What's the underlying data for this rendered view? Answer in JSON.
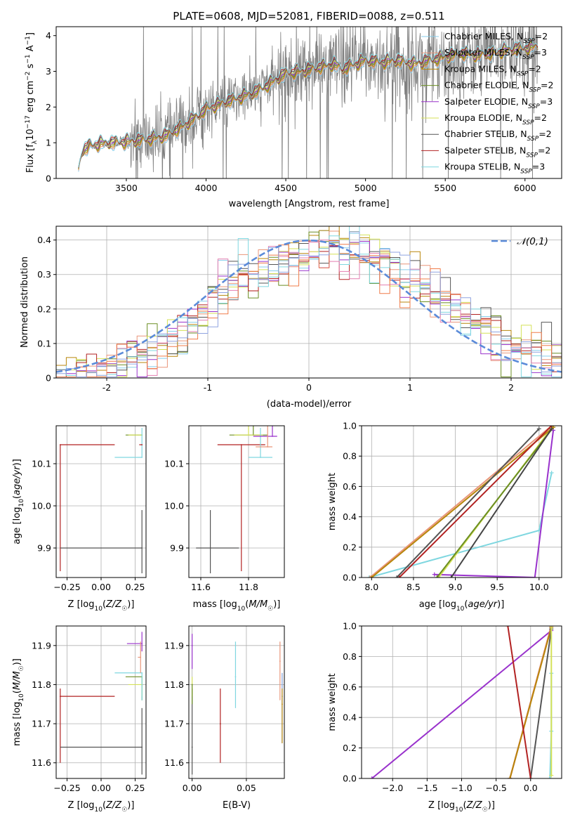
{
  "title": "PLATE=0608, MJD=52081, FIBERID=0088, z=0.511",
  "chart_data": [
    {
      "id": "spectrum",
      "type": "line",
      "xlabel": "wavelength [Angstrom, rest frame]",
      "ylabel": "Flux [f_λ10^-17 erg cm^-2 s^-1 A^-1]",
      "xlim": [
        3060,
        6230
      ],
      "ylim": [
        0,
        4.25
      ],
      "xticks": [
        3500,
        4000,
        4500,
        5000,
        5500,
        6000
      ],
      "yticks": [
        0,
        1,
        2,
        3,
        4
      ],
      "legend_position": "top-right",
      "legend": [
        {
          "label": "Chabrier MILES, N_SSP=2",
          "color": "#87ceeb"
        },
        {
          "label": "Salpeter MILES, N_SSP=3",
          "color": "#e9967a"
        },
        {
          "label": "Kroupa MILES, N_SSP=2",
          "color": "#b8860b"
        },
        {
          "label": "Chabrier ELODIE, N_SSP=2",
          "color": "#6b8e23"
        },
        {
          "label": "Salpeter ELODIE, N_SSP=3",
          "color": "#9932cc"
        },
        {
          "label": "Kroupa ELODIE, N_SSP=2",
          "color": "#d4e157"
        },
        {
          "label": "Chabrier STELIB, N_SSP=2",
          "color": "#555555"
        },
        {
          "label": "Salpeter STELIB, N_SSP=2",
          "color": "#b22222"
        },
        {
          "label": "Kroupa STELIB, N_SSP=3",
          "color": "#7fd7e0"
        }
      ],
      "observed_color": "#808080",
      "model_continuum": {
        "x": [
          3200,
          3220,
          3260,
          3300,
          3400,
          3480,
          3550,
          3650,
          3750,
          3850,
          3950,
          4000,
          4100,
          4200,
          4300,
          4400,
          4500,
          4600,
          4700,
          4800,
          4860,
          4900,
          5000,
          5100,
          5200,
          5300,
          5400,
          5500,
          5600,
          5700,
          5800,
          5900,
          6000,
          6080
        ],
        "y": [
          0.2,
          0.75,
          0.9,
          0.95,
          1.0,
          1.02,
          1.05,
          1.1,
          1.2,
          1.45,
          1.75,
          1.95,
          2.1,
          2.25,
          2.4,
          2.65,
          2.95,
          3.0,
          3.1,
          3.2,
          3.05,
          3.15,
          3.3,
          3.25,
          3.3,
          3.2,
          3.3,
          3.4,
          3.5,
          3.45,
          3.5,
          3.6,
          3.65,
          3.7
        ]
      }
    },
    {
      "id": "residuals",
      "type": "line",
      "xlabel": "(data-model)/error",
      "ylabel": "Normed distribution",
      "xlim": [
        -2.5,
        2.5
      ],
      "ylim": [
        0,
        0.44
      ],
      "xticks": [
        -2,
        -1,
        0,
        1,
        2
      ],
      "yticks": [
        0.0,
        0.1,
        0.2,
        0.3,
        0.4
      ],
      "legend": [
        {
          "label": "𝒩(0,1)",
          "color": "#5b8bd9",
          "style": "dashed"
        }
      ],
      "histogram_bin_width": 0.1,
      "histogram_profile": {
        "x": [
          -2.5,
          -2.0,
          -1.6,
          -1.2,
          -0.9,
          -0.5,
          -0.2,
          0.0,
          0.3,
          0.6,
          0.9,
          1.2,
          1.6,
          2.0,
          2.5
        ],
        "y": [
          0.01,
          0.03,
          0.06,
          0.14,
          0.25,
          0.31,
          0.33,
          0.37,
          0.38,
          0.36,
          0.3,
          0.26,
          0.17,
          0.09,
          0.03
        ]
      }
    },
    {
      "id": "age-vs-Z",
      "type": "scatter",
      "xlabel": "Z [log10(Z/Z☉)]",
      "ylabel": "age [log10(age/yr)]",
      "xlim": [
        -0.33,
        0.33
      ],
      "ylim": [
        9.83,
        10.19
      ],
      "xticks": [
        -0.25,
        0.0,
        0.25
      ],
      "xticklabels": [
        "−0.25",
        "0.00",
        "0.25"
      ],
      "yticks": [
        9.9,
        10.0,
        10.1
      ],
      "yticklabels": [
        "9.9",
        "10.0",
        "10.1"
      ],
      "points": [
        {
          "x": -0.3,
          "y": 10.145,
          "xerr": [
            0.0,
            0.4
          ],
          "yerr": [
            0.3,
            0.0
          ],
          "color": "#b22222"
        },
        {
          "x": 0.3,
          "y": 9.9,
          "xerr": [
            0.6,
            0.0
          ],
          "yerr": [
            0.06,
            0.09
          ],
          "color": "#555555"
        },
        {
          "x": 0.3,
          "y": 10.168,
          "xerr": [
            0.12,
            0.0
          ],
          "yerr": [
            0.0,
            0.0
          ],
          "color": "#6b8e23"
        },
        {
          "x": 0.3,
          "y": 10.168,
          "xerr": [
            0.1,
            0.0
          ],
          "yerr": [
            0.0,
            0.0
          ],
          "color": "#d4e157"
        },
        {
          "x": 0.3,
          "y": 10.115,
          "xerr": [
            0.2,
            0.0
          ],
          "yerr": [
            0.0,
            0.07
          ],
          "color": "#7fd7e0"
        },
        {
          "x": 0.3,
          "y": 10.145,
          "xerr": [
            0.02,
            0.0
          ],
          "yerr": [
            0.0,
            0.0
          ],
          "color": "#b22222"
        }
      ]
    },
    {
      "id": "age-vs-mass",
      "type": "scatter",
      "xlabel": "mass [log10(M/M☉)]",
      "xlim": [
        11.55,
        11.95
      ],
      "ylim": [
        9.83,
        10.19
      ],
      "xticks": [
        11.6,
        11.8
      ],
      "xticklabels": [
        "11.6",
        "11.8"
      ],
      "yticks": [
        9.9,
        10.0,
        10.1
      ],
      "yticklabels": [
        "9.9",
        "10.0",
        "10.1"
      ],
      "points": [
        {
          "x": 11.64,
          "y": 9.9,
          "xerr": [
            0.06,
            0.12
          ],
          "yerr": [
            0.06,
            0.09
          ],
          "color": "#555555"
        },
        {
          "x": 11.77,
          "y": 10.145,
          "xerr": [
            0.1,
            0.1
          ],
          "yerr": [
            0.3,
            0.0
          ],
          "color": "#b22222"
        },
        {
          "x": 11.82,
          "y": 10.168,
          "xerr": [
            0.1,
            0.06
          ],
          "yerr": [
            0.0,
            0.11
          ],
          "color": "#6b8e23"
        },
        {
          "x": 11.8,
          "y": 10.168,
          "xerr": [
            0.06,
            0.06
          ],
          "yerr": [
            0.0,
            0.07
          ],
          "color": "#d4e157"
        },
        {
          "x": 11.85,
          "y": 10.115,
          "xerr": [
            0.05,
            0.05
          ],
          "yerr": [
            0.0,
            0.07
          ],
          "color": "#7fd7e0"
        },
        {
          "x": 11.9,
          "y": 10.165,
          "xerr": [
            0.08,
            0.02
          ],
          "yerr": [
            0.0,
            0.09
          ],
          "color": "#9932cc"
        },
        {
          "x": 11.88,
          "y": 10.14,
          "xerr": [
            0.05,
            0.02
          ],
          "yerr": [
            0.0,
            0.06
          ],
          "color": "#e9967a"
        }
      ]
    },
    {
      "id": "cumulative-age",
      "type": "line",
      "xlabel": "age [log10(age/yr)]",
      "ylabel": "mass weight",
      "xlim": [
        7.88,
        10.27
      ],
      "ylim": [
        0,
        1
      ],
      "xticks": [
        8.0,
        8.5,
        9.0,
        9.5,
        10.0
      ],
      "xticklabels": [
        "8.0",
        "8.5",
        "9.0",
        "9.5",
        "10.0"
      ],
      "yticks": [
        0.0,
        0.2,
        0.4,
        0.6,
        0.8,
        1.0
      ],
      "yticklabels": [
        "0.0",
        "0.2",
        "0.4",
        "0.6",
        "0.8",
        "1.0"
      ],
      "series": [
        {
          "color": "#7fd7e0",
          "x": [
            7.97,
            10.0,
            10.15
          ],
          "y": [
            0.0,
            0.31,
            0.69
          ]
        },
        {
          "color": "#9932cc",
          "x": [
            8.75,
            9.95,
            10.17
          ],
          "y": [
            0.02,
            0.0,
            0.97
          ]
        },
        {
          "color": "#d4e157",
          "x": [
            8.8,
            10.17
          ],
          "y": [
            0.0,
            1.0
          ]
        },
        {
          "color": "#6b8e23",
          "x": [
            8.78,
            10.17
          ],
          "y": [
            0.0,
            0.99
          ]
        },
        {
          "color": "#e9967a",
          "x": [
            7.98,
            10.15
          ],
          "y": [
            0.0,
            1.0
          ]
        },
        {
          "color": "#b8860b",
          "x": [
            8.0,
            10.17
          ],
          "y": [
            0.0,
            0.99
          ]
        },
        {
          "color": "#555555",
          "x": [
            8.3,
            10.0
          ],
          "y": [
            0.0,
            0.98
          ]
        },
        {
          "color": "#b22222",
          "x": [
            8.33,
            10.15
          ],
          "y": [
            0.0,
            1.0
          ]
        },
        {
          "color": "#444444",
          "x": [
            8.95,
            10.15
          ],
          "y": [
            0.0,
            0.98
          ]
        }
      ]
    },
    {
      "id": "mass-vs-Z",
      "type": "scatter",
      "xlabel": "Z [log10(Z/Z☉)]",
      "ylabel": "mass [log10(M/M☉)]",
      "xlim": [
        -0.33,
        0.33
      ],
      "ylim": [
        11.56,
        11.95
      ],
      "xticks": [
        -0.25,
        0.0,
        0.25
      ],
      "xticklabels": [
        "−0.25",
        "0.00",
        "0.25"
      ],
      "yticks": [
        11.6,
        11.7,
        11.8,
        11.9
      ],
      "yticklabels": [
        "11.6",
        "11.7",
        "11.8",
        "11.9"
      ],
      "points": [
        {
          "x": -0.3,
          "y": 11.77,
          "xerr": [
            0.0,
            0.4
          ],
          "yerr": [
            0.17,
            0.02
          ],
          "color": "#b22222"
        },
        {
          "x": 0.3,
          "y": 11.64,
          "xerr": [
            0.6,
            0.0
          ],
          "yerr": [
            0.07,
            0.1
          ],
          "color": "#555555"
        },
        {
          "x": 0.3,
          "y": 11.82,
          "xerr": [
            0.12,
            0.0
          ],
          "yerr": [
            0.06,
            0.0
          ],
          "color": "#6b8e23"
        },
        {
          "x": 0.3,
          "y": 11.8,
          "xerr": [
            0.1,
            0.0
          ],
          "yerr": [
            0.03,
            0.02
          ],
          "color": "#d4e157"
        },
        {
          "x": 0.3,
          "y": 11.83,
          "xerr": [
            0.2,
            0.0
          ],
          "yerr": [
            0.07,
            0.0
          ],
          "color": "#7fd7e0"
        },
        {
          "x": 0.3,
          "y": 11.905,
          "xerr": [
            0.11,
            0.0
          ],
          "yerr": [
            0.02,
            0.03
          ],
          "color": "#9932cc"
        },
        {
          "x": 0.29,
          "y": 11.87,
          "xerr": [
            0.02,
            0.0
          ],
          "yerr": [
            0.04,
            0.04
          ],
          "color": "#e9967a"
        }
      ]
    },
    {
      "id": "mass-vs-EBV",
      "type": "scatter",
      "xlabel": "E(B-V)",
      "xlim": [
        -0.003,
        0.085
      ],
      "ylim": [
        11.56,
        11.95
      ],
      "xticks": [
        0.0,
        0.05
      ],
      "xticklabels": [
        "0.00",
        "0.05"
      ],
      "yticks": [
        11.6,
        11.7,
        11.8,
        11.9
      ],
      "yticklabels": [
        "11.6",
        "11.7",
        "11.8",
        "11.9"
      ],
      "points": [
        {
          "x": 0.0,
          "y": 11.64,
          "yerr": [
            0.07,
            0.15
          ],
          "color": "#555555"
        },
        {
          "x": 0.0,
          "y": 11.9,
          "yerr": [
            0.06,
            0.03
          ],
          "color": "#9932cc"
        },
        {
          "x": 0.0,
          "y": 11.8,
          "yerr": [
            0.03,
            0.02
          ],
          "color": "#d4e157"
        },
        {
          "x": 0.0,
          "y": 11.8,
          "yerr": [
            0.05,
            0.0
          ],
          "color": "#6b8e23"
        },
        {
          "x": 0.026,
          "y": 11.7,
          "yerr": [
            0.1,
            0.09
          ],
          "color": "#b22222"
        },
        {
          "x": 0.04,
          "y": 11.82,
          "yerr": [
            0.08,
            0.09
          ],
          "color": "#7fd7e0"
        },
        {
          "x": 0.081,
          "y": 11.86,
          "yerr": [
            0.1,
            0.05
          ],
          "color": "#e9967a"
        },
        {
          "x": 0.083,
          "y": 11.77,
          "yerr": [
            0.12,
            0.06
          ],
          "color": "#7f9fd9"
        },
        {
          "x": 0.083,
          "y": 11.75,
          "yerr": [
            0.1,
            0.04
          ],
          "color": "#b8860b"
        }
      ]
    },
    {
      "id": "cumulative-Z",
      "type": "line",
      "xlabel": "Z [log10(Z/Z☉)]",
      "ylabel": "mass weight",
      "xlim": [
        -2.45,
        0.45
      ],
      "ylim": [
        0,
        1
      ],
      "xticks": [
        -2.0,
        -1.5,
        -1.0,
        -0.5,
        0.0
      ],
      "xticklabels": [
        "−2.0",
        "−1.5",
        "−1.0",
        "−0.5",
        "0.0"
      ],
      "yticks": [
        0.0,
        0.2,
        0.4,
        0.6,
        0.8,
        1.0
      ],
      "yticklabels": [
        "0.0",
        "0.2",
        "0.4",
        "0.6",
        "0.8",
        "1.0"
      ],
      "series": [
        {
          "color": "#9932cc",
          "x": [
            -2.3,
            0.3
          ],
          "y": [
            0.0,
            0.97
          ]
        },
        {
          "color": "#b22222",
          "x": [
            -0.3,
            0.3
          ],
          "y": [
            0.0,
            1.0
          ]
        },
        {
          "color": "#b22222",
          "x": [
            -0.3,
            0.3
          ],
          "y": [
            0.0,
            1.0
          ]
        },
        {
          "color": "#e9967a",
          "x": [
            -0.3,
            0.3
          ],
          "y": [
            0.0,
            1.0
          ]
        },
        {
          "color": "#b8860b",
          "x": [
            -0.3,
            0.3
          ],
          "y": [
            0.0,
            0.99
          ]
        },
        {
          "color": "#555555",
          "x": [
            0.0,
            0.3
          ],
          "y": [
            0.0,
            0.98
          ]
        },
        {
          "color": "#7fd7e0",
          "x": [
            0.28,
            0.3,
            0.3
          ],
          "y": [
            0.0,
            0.31,
            0.69
          ]
        },
        {
          "color": "#d4e157",
          "x": [
            0.3,
            0.3
          ],
          "y": [
            0.02,
            1.0
          ]
        },
        {
          "color": "#b22222",
          "x": [
            -0.33,
            0.0
          ],
          "y": [
            1.0,
            0.0
          ]
        }
      ]
    }
  ]
}
